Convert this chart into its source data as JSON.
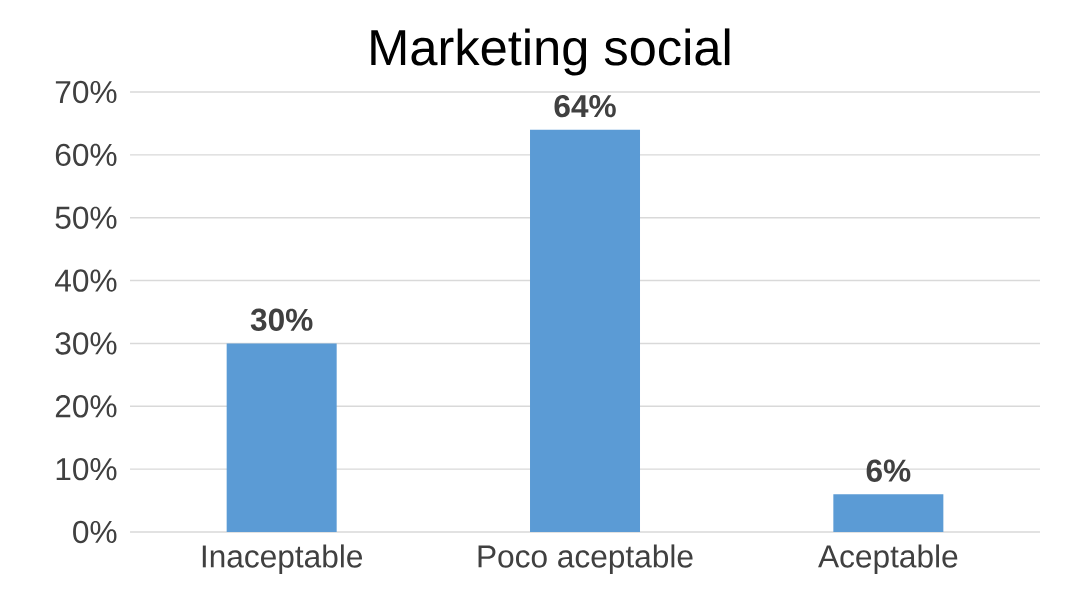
{
  "chart_data": {
    "type": "bar",
    "title": "Marketing social",
    "categories": [
      "Inaceptable",
      "Poco aceptable",
      "Aceptable"
    ],
    "values": [
      30,
      64,
      6
    ],
    "value_labels": [
      "30%",
      "64%",
      "6%"
    ],
    "color": "#5b9bd5",
    "ylim": [
      0,
      70
    ],
    "yticks": [
      {
        "value": 0,
        "label": "0%"
      },
      {
        "value": 10,
        "label": "10%"
      },
      {
        "value": 20,
        "label": "20%"
      },
      {
        "value": 30,
        "label": "30%"
      },
      {
        "value": 40,
        "label": "40%"
      },
      {
        "value": 50,
        "label": "50%"
      },
      {
        "value": 60,
        "label": "60%"
      },
      {
        "value": 70,
        "label": "70%"
      }
    ],
    "grid": "y"
  }
}
